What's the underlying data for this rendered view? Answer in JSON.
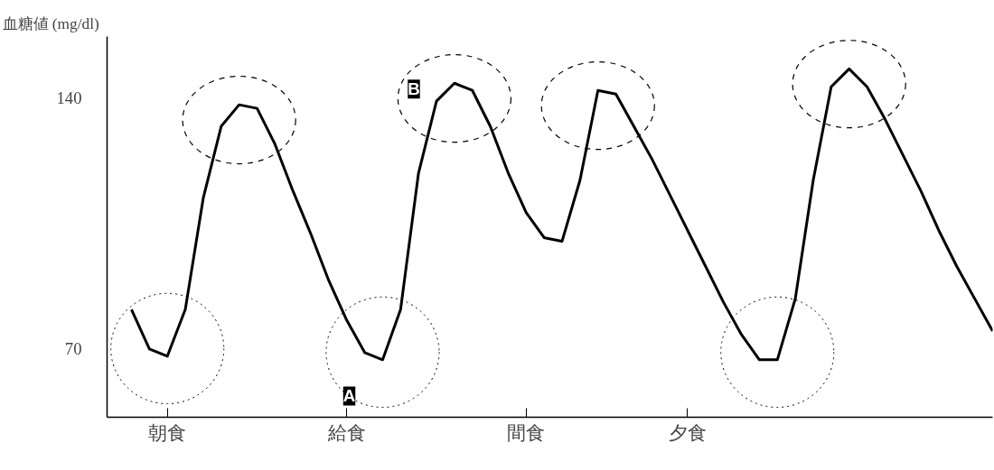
{
  "chart_data": {
    "type": "line",
    "ylabel": "血糖値 (mg/dl)",
    "categories": [
      null,
      null,
      "朝食",
      null,
      null,
      null,
      null,
      null,
      null,
      null,
      null,
      null,
      "給食",
      null,
      null,
      null,
      null,
      null,
      null,
      null,
      null,
      null,
      "間食",
      null,
      null,
      null,
      null,
      null,
      null,
      null,
      null,
      "夕食",
      null,
      null,
      null,
      null,
      null,
      null,
      null,
      null,
      null,
      null,
      null,
      null,
      null,
      null,
      null,
      null,
      null
    ],
    "series": [
      {
        "color": "#000000",
        "values": [
          81,
          70,
          68,
          81,
          112,
          132,
          138,
          137,
          127,
          114,
          102,
          89,
          78,
          69,
          67,
          81,
          119,
          139,
          144,
          142,
          132,
          119,
          108,
          101,
          100,
          117,
          142,
          141,
          132,
          123,
          113,
          103,
          93,
          83,
          74,
          67,
          67,
          84,
          117,
          143,
          148,
          143,
          134,
          124,
          114,
          103,
          93,
          84,
          75
        ]
      }
    ],
    "ylim": [
      51,
      157
    ],
    "yticks": [
      70,
      140
    ],
    "grid": false,
    "marker": "none",
    "line_style": "solid",
    "annotations": [
      "A",
      "B"
    ]
  }
}
